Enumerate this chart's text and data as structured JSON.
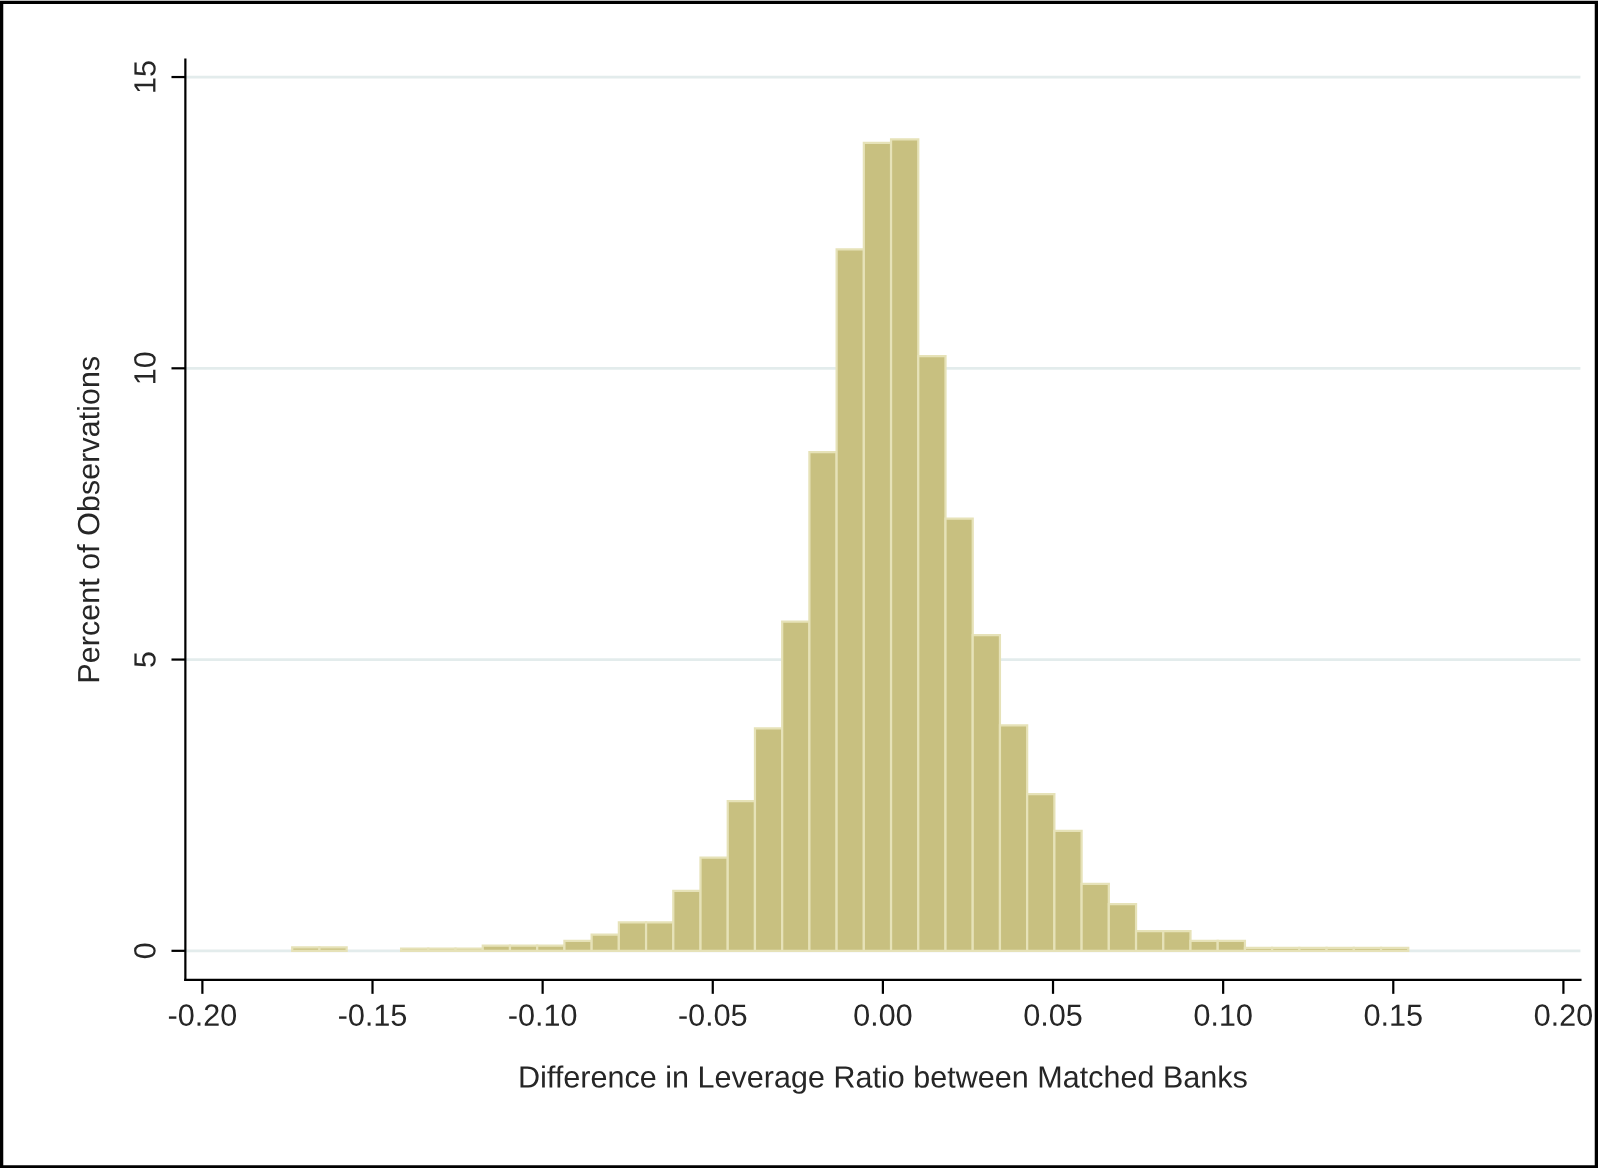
{
  "chart_data": {
    "type": "histogram",
    "xlabel": "Difference in Leverage Ratio between Matched Banks",
    "ylabel": "Percent of Observations",
    "bins": [
      -0.1736,
      -0.1656,
      -0.1576,
      -0.1496,
      -0.1416,
      -0.1336,
      -0.1256,
      -0.1176,
      -0.1096,
      -0.1016,
      -0.0936,
      -0.0856,
      -0.0776,
      -0.0696,
      -0.0616,
      -0.0536,
      -0.0456,
      -0.0376,
      -0.0296,
      -0.0216,
      -0.0136,
      -0.0056,
      0.0024,
      0.0104,
      0.0184,
      0.0264,
      0.0344,
      0.0424,
      0.0504,
      0.0584,
      0.0664,
      0.0744,
      0.0824,
      0.0904,
      0.0984,
      0.1064,
      0.1144,
      0.1224,
      0.1304,
      0.1384,
      0.1464,
      0.1544
    ],
    "values": [
      0.06,
      0.06,
      0,
      0,
      0.04,
      0.04,
      0.04,
      0.09,
      0.09,
      0.09,
      0.17,
      0.28,
      0.49,
      0.49,
      1.03,
      1.6,
      2.57,
      3.82,
      5.65,
      8.56,
      12.04,
      13.87,
      13.93,
      10.21,
      7.42,
      5.42,
      3.87,
      2.69,
      2.06,
      1.15,
      0.8,
      0.34,
      0.34,
      0.17,
      0.17,
      0.05,
      0.05,
      0.05,
      0.05,
      0.05,
      0.05
    ],
    "color": "#c8c080",
    "xlim": [
      -0.205,
      0.205
    ],
    "xticks": [
      {
        "value": -0.2,
        "label": "-0.20"
      },
      {
        "value": -0.15,
        "label": "-0.15"
      },
      {
        "value": -0.1,
        "label": "-0.10"
      },
      {
        "value": -0.05,
        "label": "-0.05"
      },
      {
        "value": 0,
        "label": "0.00"
      },
      {
        "value": 0.05,
        "label": "0.05"
      },
      {
        "value": 0.1,
        "label": "0.10"
      },
      {
        "value": 0.15,
        "label": "0.15"
      },
      {
        "value": 0.2,
        "label": "0.20"
      }
    ],
    "ylim": [
      -0.5,
      15.3
    ],
    "yticks": [
      0,
      5,
      10,
      15
    ],
    "grid": "y"
  }
}
